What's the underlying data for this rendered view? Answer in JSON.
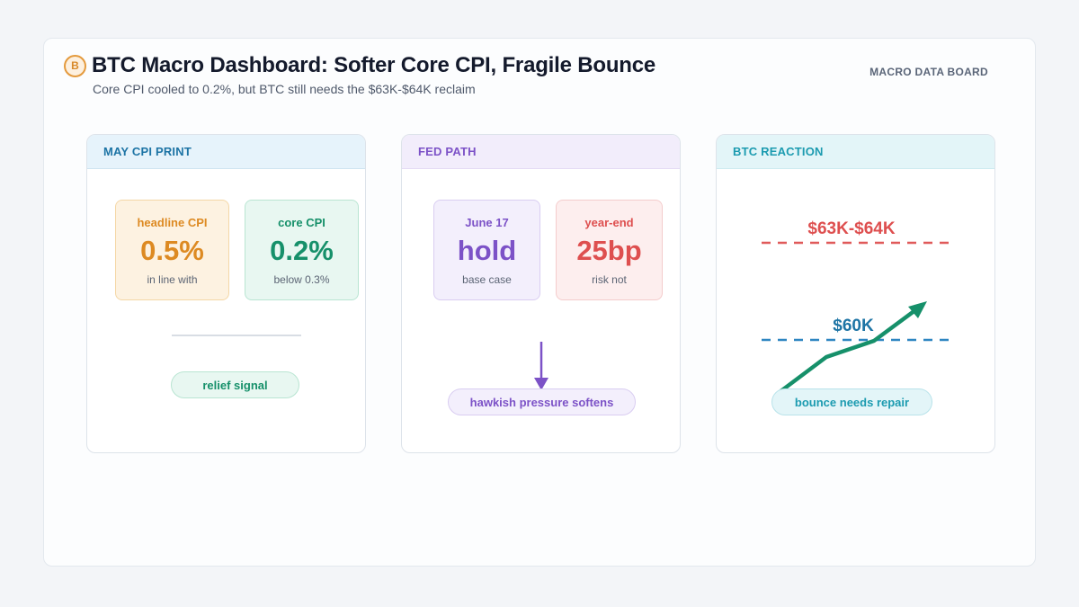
{
  "header": {
    "badge": "B",
    "title": "BTC Macro Dashboard: Softer Core CPI, Fragile Bounce",
    "subtitle": "Core CPI cooled to 0.2%, but BTC still needs the $63K-$64K reclaim",
    "board_label": "MACRO DATA BOARD"
  },
  "panels": {
    "cpi": {
      "title": "MAY CPI PRINT",
      "headline": {
        "label": "headline CPI",
        "value": "0.5%",
        "note": "in line with"
      },
      "core": {
        "label": "core CPI",
        "value": "0.2%",
        "note": "below 0.3%"
      },
      "pill": "relief signal"
    },
    "fed": {
      "title": "FED PATH",
      "june": {
        "label": "June 17",
        "value": "hold",
        "note": "base case"
      },
      "yearend": {
        "label": "year-end",
        "value": "25bp",
        "note": "risk not"
      },
      "pill": "hawkish pressure softens"
    },
    "btc": {
      "title": "BTC REACTION",
      "resistance_label": "$63K-$64K",
      "support_label": "$60K",
      "pill": "bounce needs repair"
    }
  },
  "colors": {
    "orange": "#dd8a22",
    "green": "#16906a",
    "purple": "#7c52c7",
    "red": "#de4f4f",
    "blue": "#1d74a5",
    "teal": "#1c9bb0"
  }
}
